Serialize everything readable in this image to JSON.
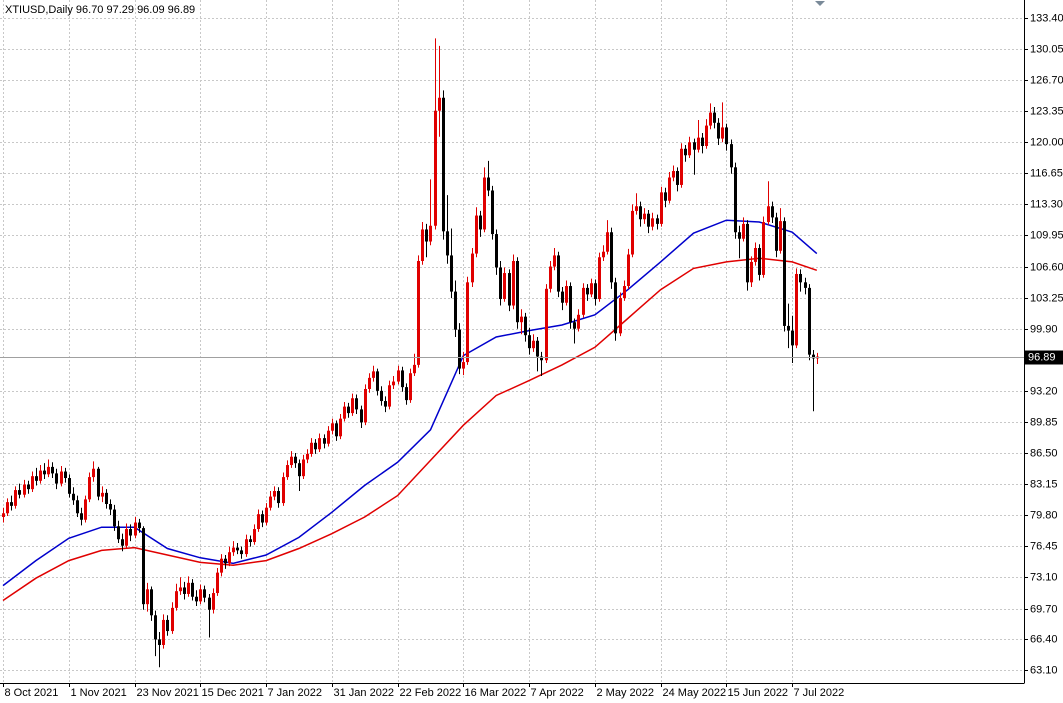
{
  "chart_data": {
    "type": "candlestick",
    "title": "XTIUSD,Daily  96.70 97.29 96.09 96.89",
    "up_color": "#e00000",
    "down_color": "#000000",
    "grid": true,
    "xlim": [
      -0.73,
      248.4
    ],
    "ylim": [
      61.7,
      135.34
    ],
    "xticks": [
      {
        "value": 0,
        "label": "8 Oct 2021"
      },
      {
        "value": 16,
        "label": "1 Nov 2021"
      },
      {
        "value": 32,
        "label": "23 Nov 2021"
      },
      {
        "value": 48,
        "label": "15 Dec 2021"
      },
      {
        "value": 64,
        "label": "7 Jan 2022"
      },
      {
        "value": 80,
        "label": "31 Jan 2022"
      },
      {
        "value": 96,
        "label": "22 Feb 2022"
      },
      {
        "value": 112,
        "label": "16 Mar 2022"
      },
      {
        "value": 128,
        "label": "7 Apr 2022"
      },
      {
        "value": 144,
        "label": "2 May 2022"
      },
      {
        "value": 160,
        "label": "24 May 2022"
      },
      {
        "value": 176,
        "label": "15 Jun 2022"
      },
      {
        "value": 192,
        "label": "7 Jul 2022"
      }
    ],
    "yticks": [
      {
        "value": 63.1,
        "label": "63.10"
      },
      {
        "value": 66.4,
        "label": "66.40"
      },
      {
        "value": 69.7,
        "label": "69.70"
      },
      {
        "value": 73.1,
        "label": "73.10"
      },
      {
        "value": 76.45,
        "label": "76.45"
      },
      {
        "value": 79.8,
        "label": "79.80"
      },
      {
        "value": 83.15,
        "label": "83.15"
      },
      {
        "value": 86.5,
        "label": "86.50"
      },
      {
        "value": 89.85,
        "label": "89.85"
      },
      {
        "value": 93.2,
        "label": "93.20"
      },
      {
        "value": 99.9,
        "label": "99.90"
      },
      {
        "value": 103.25,
        "label": "103.25"
      },
      {
        "value": 106.6,
        "label": "106.60"
      },
      {
        "value": 109.95,
        "label": "109.95"
      },
      {
        "value": 113.3,
        "label": "113.30"
      },
      {
        "value": 116.65,
        "label": "116.65"
      },
      {
        "value": 120,
        "label": "120.00"
      },
      {
        "value": 123.35,
        "label": "123.35"
      },
      {
        "value": 126.7,
        "label": "126.70"
      },
      {
        "value": 130.05,
        "label": "130.05"
      },
      {
        "value": 133.4,
        "label": "133.40"
      }
    ],
    "ohlc": [
      [
        79.6,
        80.6,
        79.0,
        80.0
      ],
      [
        80.0,
        81.6,
        79.7,
        81.2
      ],
      [
        81.2,
        81.9,
        80.3,
        80.8
      ],
      [
        80.8,
        82.9,
        80.5,
        82.5
      ],
      [
        82.5,
        83.2,
        81.6,
        82.0
      ],
      [
        82.0,
        83.6,
        81.7,
        83.1
      ],
      [
        83.1,
        83.5,
        82.1,
        82.6
      ],
      [
        82.6,
        84.5,
        82.3,
        84.0
      ],
      [
        84.0,
        84.9,
        83.0,
        83.5
      ],
      [
        83.5,
        85.2,
        83.2,
        84.6
      ],
      [
        84.6,
        85.4,
        83.7,
        84.2
      ],
      [
        84.2,
        85.8,
        83.9,
        85.0
      ],
      [
        85.0,
        85.5,
        83.8,
        84.3
      ],
      [
        84.3,
        84.8,
        82.6,
        83.2
      ],
      [
        83.2,
        85.1,
        82.9,
        84.5
      ],
      [
        84.5,
        84.9,
        83.3,
        83.8
      ],
      [
        83.8,
        84.2,
        81.7,
        82.1
      ],
      [
        82.1,
        82.8,
        80.9,
        81.4
      ],
      [
        81.4,
        81.9,
        79.6,
        80.0
      ],
      [
        80.0,
        80.6,
        78.7,
        79.3
      ],
      [
        79.3,
        81.9,
        79.0,
        81.5
      ],
      [
        81.5,
        84.4,
        81.2,
        83.9
      ],
      [
        83.9,
        85.6,
        83.4,
        84.8
      ],
      [
        84.8,
        85.0,
        81.4,
        81.8
      ],
      [
        81.8,
        82.9,
        81.2,
        82.2
      ],
      [
        82.2,
        82.6,
        80.5,
        81.0
      ],
      [
        81.0,
        81.5,
        79.8,
        80.4
      ],
      [
        80.4,
        80.9,
        78.1,
        78.6
      ],
      [
        78.6,
        79.2,
        76.8,
        77.2
      ],
      [
        77.2,
        77.8,
        75.9,
        76.5
      ],
      [
        76.5,
        78.9,
        76.2,
        78.3
      ],
      [
        78.3,
        78.8,
        77.0,
        77.6
      ],
      [
        77.6,
        79.6,
        77.3,
        79.0
      ],
      [
        79.0,
        79.4,
        77.9,
        78.4
      ],
      [
        78.4,
        78.6,
        69.6,
        70.2
      ],
      [
        70.2,
        72.5,
        69.4,
        71.8
      ],
      [
        71.8,
        72.1,
        68.4,
        69.0
      ],
      [
        69.0,
        69.5,
        64.6,
        66.4
      ],
      [
        66.4,
        67.2,
        63.4,
        65.8
      ],
      [
        65.8,
        69.1,
        65.4,
        68.5
      ],
      [
        68.5,
        69.0,
        66.8,
        67.3
      ],
      [
        67.3,
        70.4,
        67.0,
        69.8
      ],
      [
        69.8,
        72.4,
        69.5,
        71.6
      ],
      [
        71.6,
        73.1,
        71.2,
        72.0
      ],
      [
        72.0,
        72.6,
        70.7,
        71.3
      ],
      [
        71.3,
        73.2,
        71.0,
        72.5
      ],
      [
        72.5,
        72.9,
        70.6,
        71.0
      ],
      [
        71.0,
        71.7,
        70.0,
        70.5
      ],
      [
        70.5,
        72.3,
        70.2,
        71.8
      ],
      [
        71.8,
        72.2,
        70.4,
        70.9
      ],
      [
        70.9,
        71.3,
        66.6,
        69.6
      ],
      [
        69.6,
        71.9,
        69.2,
        71.4
      ],
      [
        71.4,
        74.1,
        71.1,
        73.6
      ],
      [
        73.6,
        75.6,
        73.2,
        75.1
      ],
      [
        75.1,
        75.5,
        74.0,
        74.6
      ],
      [
        74.6,
        76.4,
        74.3,
        75.8
      ],
      [
        75.8,
        77.0,
        75.4,
        76.3
      ],
      [
        76.3,
        76.8,
        75.6,
        76.0
      ],
      [
        76.0,
        76.4,
        75.1,
        75.6
      ],
      [
        75.6,
        77.7,
        75.3,
        77.2
      ],
      [
        77.2,
        77.6,
        76.4,
        76.9
      ],
      [
        76.9,
        78.8,
        76.6,
        78.3
      ],
      [
        78.3,
        80.4,
        78.0,
        79.9
      ],
      [
        79.9,
        80.3,
        78.5,
        79.0
      ],
      [
        79.0,
        81.1,
        78.7,
        80.6
      ],
      [
        80.6,
        82.4,
        80.3,
        81.8
      ],
      [
        81.8,
        82.9,
        81.4,
        82.4
      ],
      [
        82.4,
        82.8,
        80.6,
        81.1
      ],
      [
        81.1,
        84.4,
        80.8,
        83.9
      ],
      [
        83.9,
        85.7,
        83.6,
        85.2
      ],
      [
        85.2,
        86.7,
        84.9,
        86.1
      ],
      [
        86.1,
        86.5,
        84.9,
        85.4
      ],
      [
        85.4,
        85.8,
        82.4,
        84.0
      ],
      [
        84.0,
        86.3,
        83.7,
        85.8
      ],
      [
        85.8,
        86.9,
        85.4,
        86.4
      ],
      [
        86.4,
        88.1,
        86.1,
        87.6
      ],
      [
        87.6,
        88.0,
        86.4,
        86.9
      ],
      [
        86.9,
        88.6,
        86.6,
        88.1
      ],
      [
        88.1,
        88.5,
        87.0,
        87.5
      ],
      [
        87.5,
        89.4,
        87.2,
        88.9
      ],
      [
        88.9,
        90.2,
        88.5,
        89.7
      ],
      [
        89.7,
        90.0,
        87.8,
        88.3
      ],
      [
        88.3,
        90.7,
        88.0,
        90.2
      ],
      [
        90.2,
        92.0,
        89.9,
        91.5
      ],
      [
        91.5,
        91.9,
        90.3,
        90.8
      ],
      [
        90.8,
        92.9,
        90.5,
        92.4
      ],
      [
        92.4,
        92.8,
        90.7,
        91.2
      ],
      [
        91.2,
        91.6,
        89.2,
        89.8
      ],
      [
        89.8,
        93.9,
        89.5,
        93.4
      ],
      [
        93.4,
        95.1,
        93.0,
        94.6
      ],
      [
        94.6,
        95.9,
        94.2,
        95.3
      ],
      [
        95.3,
        95.6,
        92.7,
        93.2
      ],
      [
        93.2,
        93.7,
        91.6,
        92.1
      ],
      [
        92.1,
        92.6,
        90.9,
        91.5
      ],
      [
        91.5,
        94.3,
        91.2,
        93.8
      ],
      [
        93.8,
        94.8,
        93.4,
        94.2
      ],
      [
        94.2,
        95.9,
        93.9,
        95.4
      ],
      [
        95.4,
        95.8,
        93.1,
        93.6
      ],
      [
        93.6,
        94.0,
        91.7,
        92.2
      ],
      [
        92.2,
        95.6,
        91.9,
        95.1
      ],
      [
        95.1,
        97.2,
        94.8,
        96.0
      ],
      [
        96.0,
        107.8,
        95.7,
        107.2
      ],
      [
        107.2,
        111.4,
        106.8,
        110.6
      ],
      [
        110.6,
        111.2,
        107.6,
        109.3
      ],
      [
        109.3,
        116.0,
        108.9,
        111.0
      ],
      [
        111.0,
        131.2,
        110.6,
        123.4
      ],
      [
        123.4,
        130.4,
        120.6,
        124.8
      ],
      [
        124.8,
        125.6,
        109.5,
        110.4
      ],
      [
        110.4,
        114.3,
        106.9,
        107.8
      ],
      [
        107.8,
        110.7,
        103.2,
        103.9
      ],
      [
        103.9,
        105.1,
        99.0,
        99.8
      ],
      [
        99.8,
        100.5,
        95.0,
        95.6
      ],
      [
        95.6,
        97.4,
        94.9,
        96.3
      ],
      [
        96.3,
        105.5,
        96.0,
        104.9
      ],
      [
        104.9,
        108.6,
        104.4,
        108.0
      ],
      [
        108.0,
        113.0,
        107.6,
        112.1
      ],
      [
        112.1,
        112.6,
        109.8,
        110.6
      ],
      [
        110.6,
        117.3,
        110.3,
        116.2
      ],
      [
        116.2,
        118.0,
        114.2,
        114.8
      ],
      [
        114.8,
        115.3,
        109.5,
        110.1
      ],
      [
        110.1,
        110.6,
        105.7,
        106.5
      ],
      [
        106.5,
        107.2,
        102.4,
        103.1
      ],
      [
        103.1,
        106.5,
        102.8,
        105.9
      ],
      [
        105.9,
        106.3,
        101.8,
        102.4
      ],
      [
        102.4,
        107.9,
        102.0,
        107.2
      ],
      [
        107.2,
        107.6,
        99.9,
        100.6
      ],
      [
        100.6,
        102.0,
        99.3,
        101.2
      ],
      [
        101.2,
        101.6,
        98.5,
        99.2
      ],
      [
        99.2,
        100.0,
        97.1,
        97.8
      ],
      [
        97.8,
        99.3,
        97.4,
        98.6
      ],
      [
        98.6,
        99.0,
        95.3,
        96.9
      ],
      [
        96.9,
        97.4,
        94.8,
        96.5
      ],
      [
        96.5,
        104.7,
        96.2,
        104.2
      ],
      [
        104.2,
        107.2,
        103.8,
        106.6
      ],
      [
        106.6,
        108.6,
        106.2,
        107.8
      ],
      [
        107.8,
        108.2,
        103.3,
        103.9
      ],
      [
        103.9,
        104.4,
        101.9,
        102.7
      ],
      [
        102.7,
        105.1,
        102.4,
        104.5
      ],
      [
        104.5,
        104.9,
        99.9,
        100.6
      ],
      [
        100.6,
        101.0,
        98.3,
        99.9
      ],
      [
        99.9,
        102.0,
        99.6,
        101.4
      ],
      [
        101.4,
        104.8,
        101.1,
        104.3
      ],
      [
        104.3,
        104.7,
        102.9,
        103.6
      ],
      [
        103.6,
        105.3,
        103.3,
        104.8
      ],
      [
        104.8,
        105.2,
        102.4,
        103.1
      ],
      [
        103.1,
        108.1,
        102.8,
        107.6
      ],
      [
        107.6,
        108.9,
        107.2,
        108.2
      ],
      [
        108.2,
        111.6,
        107.9,
        110.3
      ],
      [
        110.3,
        110.8,
        104.2,
        104.9
      ],
      [
        104.9,
        105.4,
        98.6,
        99.4
      ],
      [
        99.4,
        103.8,
        99.1,
        103.2
      ],
      [
        103.2,
        105.1,
        102.9,
        104.5
      ],
      [
        104.5,
        108.5,
        104.2,
        107.9
      ],
      [
        107.9,
        113.3,
        107.6,
        112.6
      ],
      [
        112.6,
        114.5,
        112.2,
        113.1
      ],
      [
        113.1,
        113.6,
        110.9,
        111.7
      ],
      [
        111.7,
        112.9,
        111.2,
        112.3
      ],
      [
        112.3,
        112.7,
        110.2,
        110.9
      ],
      [
        110.9,
        112.4,
        110.5,
        111.8
      ],
      [
        111.8,
        112.2,
        110.6,
        111.2
      ],
      [
        111.2,
        115.2,
        110.9,
        114.6
      ],
      [
        114.6,
        115.1,
        113.0,
        113.7
      ],
      [
        113.7,
        116.8,
        113.4,
        116.2
      ],
      [
        116.2,
        117.5,
        115.8,
        116.9
      ],
      [
        116.9,
        117.3,
        114.7,
        115.4
      ],
      [
        115.4,
        119.9,
        115.1,
        119.3
      ],
      [
        119.3,
        119.7,
        117.9,
        118.6
      ],
      [
        118.6,
        120.6,
        118.3,
        120.0
      ],
      [
        120.0,
        120.4,
        116.5,
        119.2
      ],
      [
        119.2,
        122.4,
        118.9,
        120.5
      ],
      [
        120.5,
        121.0,
        118.8,
        119.6
      ],
      [
        119.6,
        122.5,
        119.3,
        121.8
      ],
      [
        121.8,
        124.2,
        121.4,
        123.2
      ],
      [
        123.2,
        123.8,
        121.5,
        122.1
      ],
      [
        122.1,
        122.6,
        119.7,
        120.4
      ],
      [
        120.4,
        124.3,
        120.0,
        121.6
      ],
      [
        121.6,
        122.0,
        119.1,
        119.8
      ],
      [
        119.8,
        120.3,
        116.6,
        117.3
      ],
      [
        117.3,
        117.8,
        109.6,
        110.3
      ],
      [
        110.3,
        111.0,
        107.5,
        109.6
      ],
      [
        109.6,
        111.9,
        109.3,
        111.2
      ],
      [
        111.2,
        111.6,
        104.0,
        104.9
      ],
      [
        104.9,
        107.7,
        104.4,
        107.1
      ],
      [
        107.1,
        109.2,
        106.7,
        108.6
      ],
      [
        108.6,
        109.0,
        105.1,
        105.7
      ],
      [
        105.7,
        112.0,
        105.4,
        111.4
      ],
      [
        111.4,
        115.8,
        111.1,
        113.1
      ],
      [
        113.1,
        113.6,
        111.3,
        111.9
      ],
      [
        111.9,
        112.4,
        107.6,
        108.3
      ],
      [
        108.3,
        112.9,
        108.0,
        111.5
      ],
      [
        111.5,
        111.9,
        99.6,
        100.2
      ],
      [
        100.2,
        102.6,
        97.8,
        99.7
      ],
      [
        99.7,
        101.3,
        96.2,
        98.1
      ],
      [
        98.1,
        106.4,
        97.8,
        105.8
      ],
      [
        105.8,
        106.3,
        103.9,
        104.9
      ],
      [
        104.9,
        105.4,
        103.6,
        104.3
      ],
      [
        104.3,
        104.7,
        96.5,
        97.1
      ],
      [
        97.1,
        97.6,
        91.0,
        96.7
      ],
      [
        96.7,
        97.29,
        96.09,
        96.89
      ]
    ],
    "series": [
      {
        "color": "#0000cc",
        "x": [
          0,
          8,
          16,
          24,
          32,
          40,
          48,
          56,
          64,
          72,
          80,
          88,
          96,
          104,
          112,
          120,
          128,
          136,
          144,
          152,
          160,
          168,
          176,
          184,
          192,
          198
        ],
        "values": [
          72.2,
          74.9,
          77.3,
          78.5,
          78.5,
          76.2,
          75.2,
          74.6,
          75.5,
          77.4,
          80.1,
          83.0,
          85.5,
          89.0,
          97.0,
          99.0,
          99.7,
          100.3,
          101.4,
          104.1,
          107.1,
          110.2,
          111.6,
          111.4,
          110.3,
          108.0
        ]
      },
      {
        "color": "#e00000",
        "x": [
          0,
          8,
          16,
          24,
          32,
          40,
          48,
          56,
          64,
          72,
          80,
          88,
          96,
          104,
          112,
          120,
          128,
          136,
          144,
          152,
          160,
          168,
          176,
          184,
          192,
          198
        ],
        "values": [
          70.6,
          73.0,
          74.9,
          76.0,
          76.3,
          75.5,
          74.7,
          74.4,
          74.9,
          76.2,
          77.8,
          79.6,
          81.9,
          85.7,
          89.5,
          92.7,
          94.3,
          96.0,
          97.9,
          101.0,
          104.1,
          106.4,
          107.1,
          107.5,
          107.1,
          106.2
        ]
      }
    ]
  }
}
